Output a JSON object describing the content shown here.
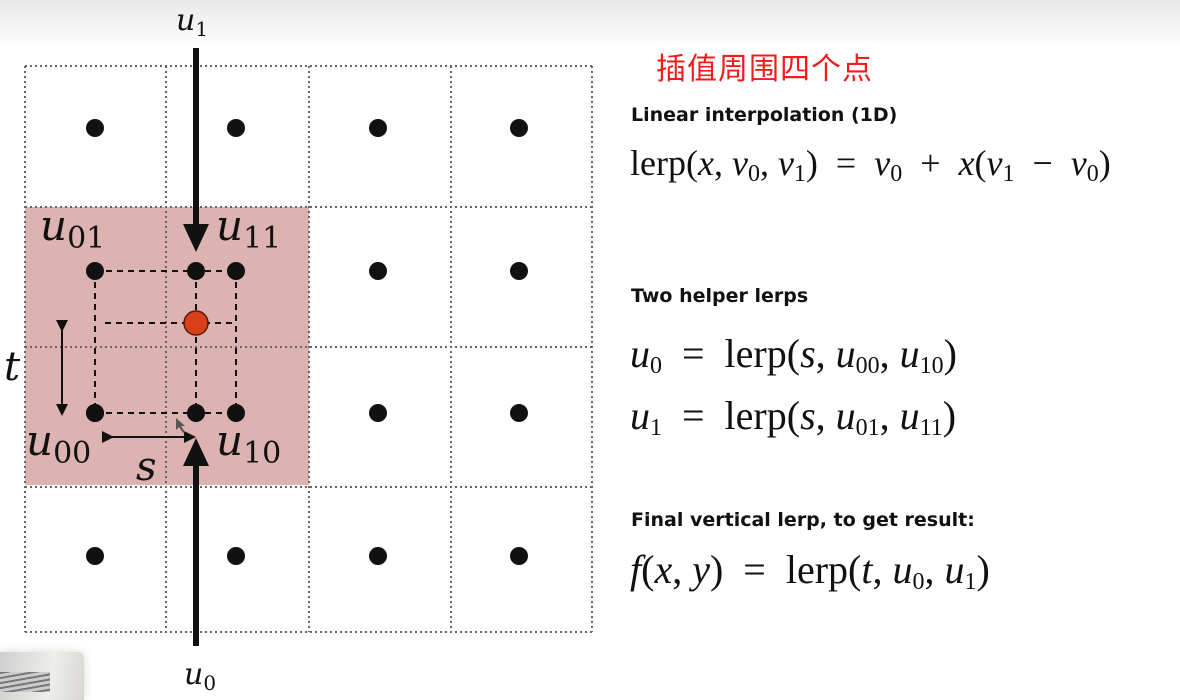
{
  "note": "插值周围四个点",
  "colors": {
    "highlight_cell": "#dcb3b1",
    "sample_point": "#d9401a",
    "note_text": "#f21c1c"
  },
  "diagram": {
    "arrow_top_label": {
      "base": "u",
      "sub": "1"
    },
    "arrow_bottom_label": {
      "base": "u",
      "sub": "0"
    },
    "corner_labels": {
      "u01": {
        "base": "u",
        "sub": "01"
      },
      "u11": {
        "base": "u",
        "sub": "11"
      },
      "u00": {
        "base": "u",
        "sub": "00"
      },
      "u10": {
        "base": "u",
        "sub": "10"
      }
    },
    "t_label": "t",
    "s_label": "s"
  },
  "sections": [
    {
      "heading": "Linear interpolation (1D)",
      "formulas": [
        "lerp(x, v_0, v_1) = v_0 + x(v_1 − v_0)"
      ]
    },
    {
      "heading": "Two helper lerps",
      "formulas": [
        "u_0 = lerp(s, u_00, u_10)",
        "u_1 = lerp(s, u_01, u_11)"
      ]
    },
    {
      "heading": "Final vertical lerp, to get result:",
      "formulas": [
        "f(x, y) = lerp(t, u_0, u_1)"
      ]
    }
  ]
}
